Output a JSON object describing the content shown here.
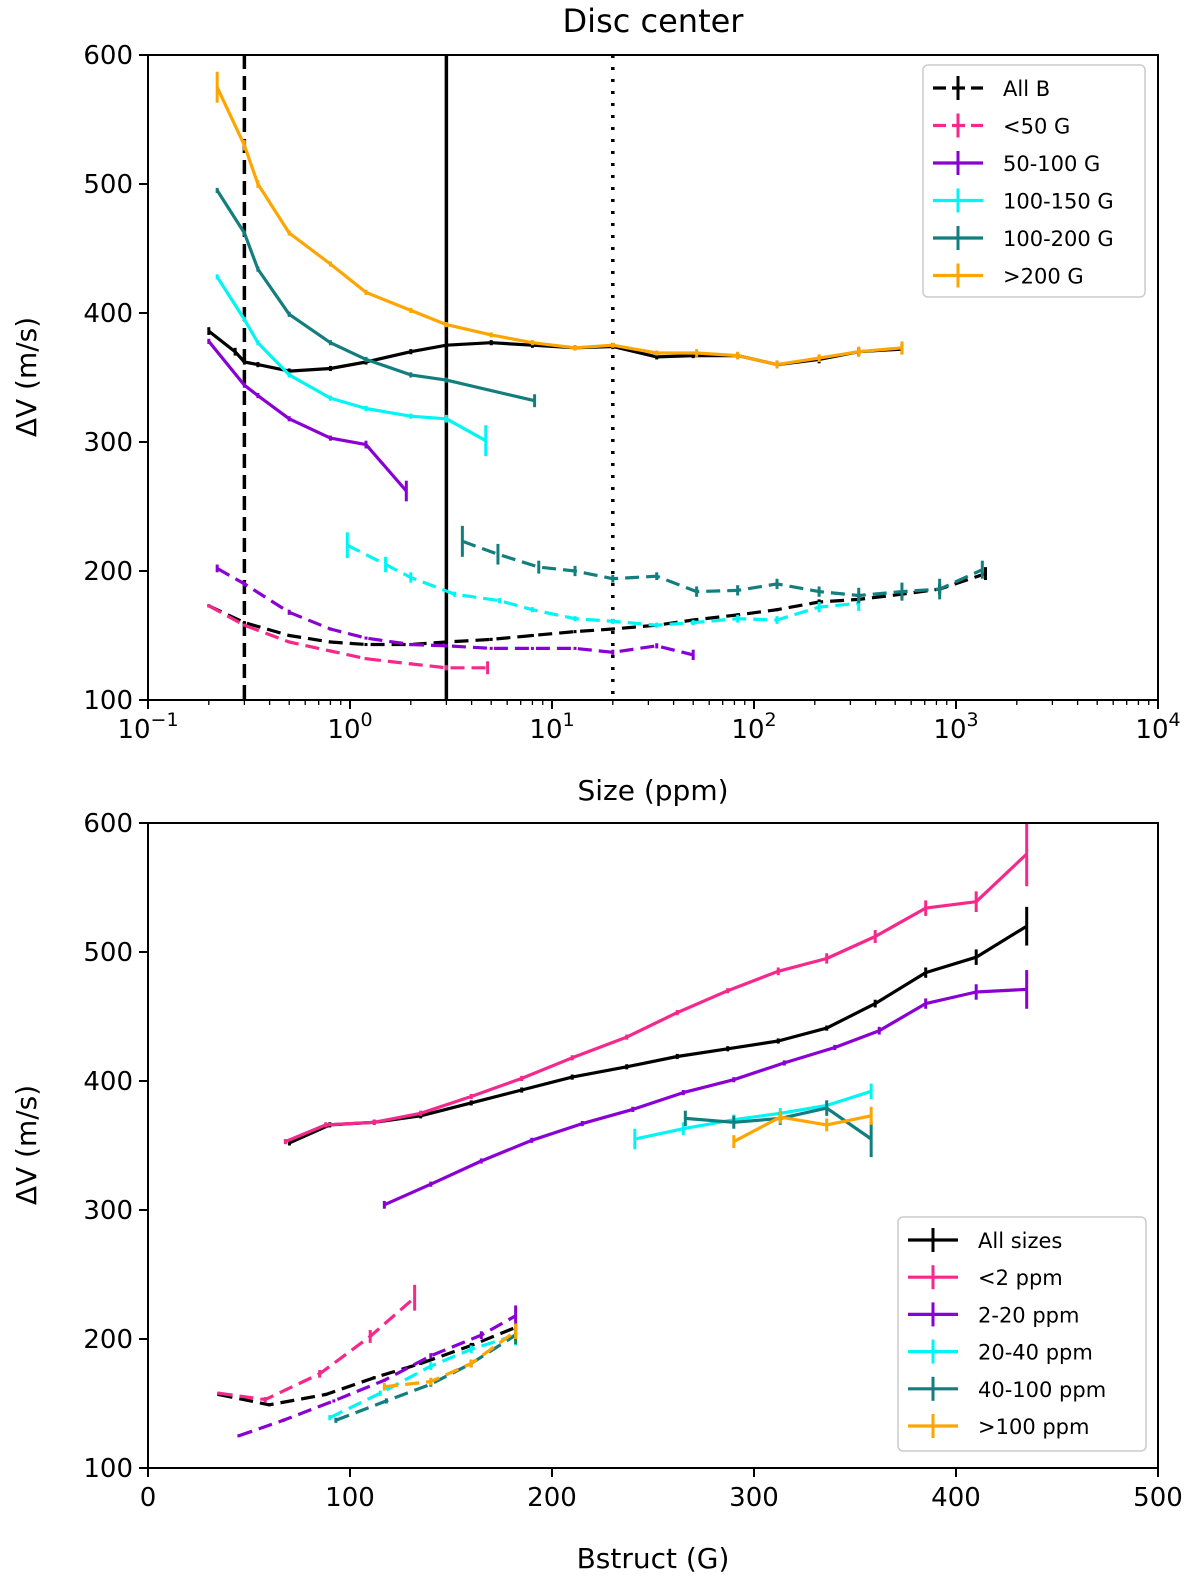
{
  "chart_data": [
    {
      "type": "line",
      "title": "Disc center",
      "xlabel": "Size (ppm)",
      "ylabel": "ΔV (m/s)",
      "xscale": "log",
      "xlim": [
        0.1,
        10000
      ],
      "ylim": [
        100,
        600
      ],
      "xticks": [
        {
          "value": 0.1,
          "base": "10",
          "exp": "−1"
        },
        {
          "value": 1,
          "base": "10",
          "exp": "0"
        },
        {
          "value": 10,
          "base": "10",
          "exp": "1"
        },
        {
          "value": 100,
          "base": "10",
          "exp": "2"
        },
        {
          "value": 1000,
          "base": "10",
          "exp": "3"
        },
        {
          "value": 10000,
          "base": "10",
          "exp": "4"
        }
      ],
      "yticks": [
        {
          "value": 100,
          "label": "100"
        },
        {
          "value": 200,
          "label": "200"
        },
        {
          "value": 300,
          "label": "300"
        },
        {
          "value": 400,
          "label": "400"
        },
        {
          "value": 500,
          "label": "500"
        },
        {
          "value": 600,
          "label": "600"
        }
      ],
      "legend_position": "top-right",
      "vlines": [
        {
          "x": 0.3,
          "style": "dashed"
        },
        {
          "x": 3,
          "style": "solid"
        },
        {
          "x": 20,
          "style": "dotted"
        }
      ],
      "series": [
        {
          "name": "All B",
          "legend_style": "dashed",
          "color": "#000000",
          "solid": {
            "x": [
              0.2,
              0.27,
              0.3,
              0.35,
              0.5,
              0.8,
              1.2,
              2.0,
              3.0,
              5.0,
              8.0,
              13,
              20,
              33,
              50,
              83,
              130,
              210,
              330,
              540
            ],
            "y": [
              386,
              370,
              362,
              360,
              355,
              357,
              362,
              370,
              375,
              377,
              375,
              373,
              374,
              366,
              367,
              367,
              360,
              364,
              370,
              372
            ],
            "err": [
              3,
              3,
              2,
              2,
              2,
              2,
              2,
              2,
              2,
              2,
              2,
              2,
              2,
              2,
              2,
              2,
              3,
              3,
              3,
              4
            ]
          },
          "dashed": {
            "x": [
              0.2,
              0.3,
              0.5,
              0.8,
              1.2,
              2.0,
              3.0,
              5.0,
              8.0,
              13,
              20,
              33,
              50,
              83,
              130,
              210,
              330,
              540,
              830,
              1400
            ],
            "y": [
              173,
              160,
              150,
              145,
              143,
              143,
              145,
              147,
              150,
              153,
              155,
              158,
              162,
              166,
              170,
              176,
              178,
              182,
              186,
              198
            ],
            "err": [
              1,
              1,
              1,
              1,
              1,
              1,
              1,
              1,
              1,
              1,
              1,
              1,
              1,
              1,
              1,
              2,
              2,
              3,
              4,
              5
            ]
          }
        },
        {
          "name": "<50 G",
          "legend_style": "dashed",
          "color": "#f7288c",
          "dashed": {
            "x": [
              0.2,
              0.3,
              0.5,
              0.8,
              1.2,
              2.0,
              3.0,
              4.8
            ],
            "y": [
              173,
              158,
              145,
              138,
              132,
              128,
              125,
              125
            ],
            "err": [
              1,
              1,
              1,
              1,
              1,
              1,
              2,
              5
            ]
          }
        },
        {
          "name": "50-100 G",
          "legend_style": "solid",
          "color": "#8a00d4",
          "solid": {
            "x": [
              0.2,
              0.3,
              0.35,
              0.5,
              0.8,
              1.2,
              1.9
            ],
            "y": [
              378,
              344,
              336,
              318,
              303,
              298,
              262
            ],
            "err": [
              2,
              2,
              2,
              2,
              2,
              3,
              8
            ]
          },
          "dashed": {
            "x": [
              0.22,
              0.3,
              0.5,
              0.8,
              1.2,
              2.0,
              3.0,
              5.0,
              8.0,
              13,
              20,
              33,
              50
            ],
            "y": [
              202,
              190,
              168,
              155,
              148,
              143,
              142,
              140,
              140,
              140,
              137,
              142,
              135
            ],
            "err": [
              3,
              2,
              2,
              1,
              1,
              1,
              1,
              1,
              1,
              1,
              2,
              2,
              4
            ]
          }
        },
        {
          "name": "100-150 G",
          "legend_style": "solid",
          "color": "#00f5f5",
          "solid": {
            "x": [
              0.22,
              0.3,
              0.35,
              0.5,
              0.8,
              1.2,
              2.0,
              3.0,
              4.7
            ],
            "y": [
              428,
              395,
              377,
              352,
              334,
              326,
              320,
              318,
              301
            ],
            "err": [
              2,
              2,
              2,
              2,
              2,
              2,
              2,
              3,
              12
            ]
          },
          "dashed": {
            "x": [
              0.97,
              1.5,
              2.0,
              3.3,
              5.5,
              8.0,
              13,
              20,
              33,
              50,
              83,
              130,
              210,
              330
            ],
            "y": [
              220,
              205,
              195,
              182,
              177,
              170,
              163,
              161,
              158,
              160,
              163,
              162,
              172,
              175
            ],
            "err": [
              10,
              6,
              4,
              2,
              2,
              2,
              2,
              2,
              2,
              2,
              3,
              3,
              4,
              6
            ]
          }
        },
        {
          "name": "100-200 G",
          "legend_style": "solid",
          "color": "#127e7e",
          "solid": {
            "x": [
              0.22,
              0.3,
              0.35,
              0.5,
              0.8,
              1.2,
              2.0,
              3.0,
              8.2
            ],
            "y": [
              495,
              462,
              434,
              399,
              377,
              364,
              352,
              348,
              332
            ],
            "err": [
              2,
              2,
              2,
              2,
              2,
              2,
              2,
              2,
              5
            ]
          },
          "dashed": {
            "x": [
              3.6,
              5.4,
              8.6,
              13,
              20,
              33,
              52,
              83,
              130,
              210,
              330,
              540,
              830,
              1350
            ],
            "y": [
              223,
              213,
              203,
              200,
              194,
              196,
              184,
              185,
              190,
              184,
              181,
              184,
              186,
              201
            ],
            "err": [
              12,
              8,
              5,
              4,
              3,
              3,
              4,
              4,
              4,
              4,
              6,
              7,
              8,
              7
            ]
          }
        },
        {
          "name": ">200 G",
          "legend_style": "solid",
          "color": "#ffa500",
          "solid": {
            "x": [
              0.22,
              0.3,
              0.35,
              0.5,
              0.8,
              1.2,
              2.0,
              3.0,
              5.0,
              8.0,
              13,
              20,
              33,
              52,
              83,
              130,
              210,
              330,
              540
            ],
            "y": [
              575,
              530,
              500,
              462,
              438,
              416,
              402,
              391,
              383,
              377,
              373,
              375,
              369,
              369,
              367,
              360,
              365,
              370,
              373
            ],
            "err": [
              12,
              4,
              3,
              2,
              2,
              2,
              2,
              2,
              2,
              2,
              2,
              2,
              2,
              3,
              3,
              3,
              3,
              4,
              5
            ]
          }
        }
      ]
    },
    {
      "type": "line",
      "title": "",
      "xlabel": "Bstruct (G)",
      "ylabel": "ΔV (m/s)",
      "xscale": "linear",
      "xlim": [
        0,
        500
      ],
      "ylim": [
        100,
        600
      ],
      "xticks": [
        {
          "value": 0,
          "label": "0"
        },
        {
          "value": 100,
          "label": "100"
        },
        {
          "value": 200,
          "label": "200"
        },
        {
          "value": 300,
          "label": "300"
        },
        {
          "value": 400,
          "label": "400"
        },
        {
          "value": 500,
          "label": "500"
        }
      ],
      "yticks": [
        {
          "value": 100,
          "label": "100"
        },
        {
          "value": 200,
          "label": "200"
        },
        {
          "value": 300,
          "label": "300"
        },
        {
          "value": 400,
          "label": "400"
        },
        {
          "value": 500,
          "label": "500"
        },
        {
          "value": 600,
          "label": "600"
        }
      ],
      "legend_position": "bottom-right",
      "series": [
        {
          "name": "All sizes",
          "legend_style": "solid",
          "color": "#000000",
          "solid": {
            "x": [
              70,
              90,
              112,
              135,
              160,
              185,
              210,
              237,
              262,
              287,
              312,
              336,
              360,
              385,
              410,
              435
            ],
            "y": [
              352,
              366,
              368,
              373,
              383,
              393,
              403,
              411,
              419,
              425,
              431,
              441,
              460,
              484,
              496,
              520
            ],
            "err": [
              2,
              2,
              2,
              2,
              2,
              2,
              2,
              2,
              2,
              2,
              2,
              2,
              3,
              4,
              6,
              15
            ]
          },
          "dashed": {
            "x": [
              35,
              60,
              88,
              112,
              135,
              160,
              182
            ],
            "y": [
              157,
              149,
              157,
              170,
              181,
              195,
              209
            ],
            "err": [
              1,
              1,
              1,
              1,
              1,
              2,
              3
            ]
          }
        },
        {
          "name": "<2 ppm",
          "legend_style": "solid",
          "color": "#f7288c",
          "solid": {
            "x": [
              68,
              88,
              112,
              135,
              160,
              185,
              210,
              237,
              262,
              287,
              312,
              336,
              360,
              385,
              410,
              435
            ],
            "y": [
              353,
              366,
              368,
              375,
              388,
              402,
              418,
              434,
              453,
              470,
              485,
              495,
              512,
              534,
              539,
              576
            ],
            "err": [
              2,
              2,
              2,
              2,
              2,
              2,
              2,
              2,
              2,
              2,
              3,
              4,
              5,
              6,
              8,
              25
            ]
          },
          "dashed": {
            "x": [
              35,
              58,
              85,
              110,
              132
            ],
            "y": [
              158,
              153,
              173,
              202,
              232
            ],
            "err": [
              1,
              2,
              3,
              5,
              10
            ]
          }
        },
        {
          "name": "2-20 ppm",
          "legend_style": "solid",
          "color": "#8a00d4",
          "solid": {
            "x": [
              117,
              140,
              165,
              190,
              215,
              240,
              265,
              290,
              315,
              340,
              362,
              385,
              410,
              435
            ],
            "y": [
              304,
              320,
              338,
              354,
              367,
              378,
              391,
              401,
              414,
              426,
              439,
              460,
              469,
              471
            ],
            "err": [
              3,
              2,
              2,
              2,
              2,
              2,
              2,
              2,
              2,
              2,
              3,
              4,
              6,
              15
            ]
          },
          "dashed": {
            "x": [
              45,
              67,
              92,
              117,
              140,
              165,
              182
            ],
            "y": [
              125,
              137,
              152,
              168,
              187,
              203,
              218
            ],
            "err": [
              1,
              1,
              1,
              1,
              2,
              3,
              8
            ]
          }
        },
        {
          "name": "20-40 ppm",
          "legend_style": "solid",
          "color": "#00f5f5",
          "solid": {
            "x": [
              241,
              265,
              290,
              313,
              336,
              358
            ],
            "y": [
              355,
              363,
              370,
              375,
              381,
              392
            ],
            "err": [
              8,
              5,
              4,
              4,
              4,
              6
            ]
          },
          "dashed": {
            "x": [
              90,
              115,
              140,
              160,
              182
            ],
            "y": [
              139,
              158,
              179,
              192,
              203
            ],
            "err": [
              2,
              2,
              3,
              3,
              8
            ]
          }
        },
        {
          "name": "40-100 ppm",
          "legend_style": "solid",
          "color": "#127e7e",
          "solid": {
            "x": [
              266,
              290,
              313,
              336,
              358
            ],
            "y": [
              371,
              368,
              371,
              379,
              355
            ],
            "err": [
              6,
              5,
              5,
              6,
              14
            ]
          },
          "dashed": {
            "x": [
              93,
              118,
              140,
              160,
              182
            ],
            "y": [
              137,
              152,
              165,
              181,
              203
            ],
            "err": [
              2,
              2,
              2,
              3,
              7
            ]
          }
        },
        {
          "name": ">100 ppm",
          "legend_style": "solid",
          "color": "#ffa500",
          "solid": {
            "x": [
              290,
              313,
              336,
              358
            ],
            "y": [
              353,
              372,
              366,
              373
            ],
            "err": [
              5,
              5,
              5,
              7
            ]
          },
          "dashed": {
            "x": [
              117,
              140,
              160,
              182
            ],
            "y": [
              163,
              167,
              181,
              206
            ],
            "err": [
              3,
              3,
              3,
              6
            ]
          }
        }
      ]
    }
  ]
}
